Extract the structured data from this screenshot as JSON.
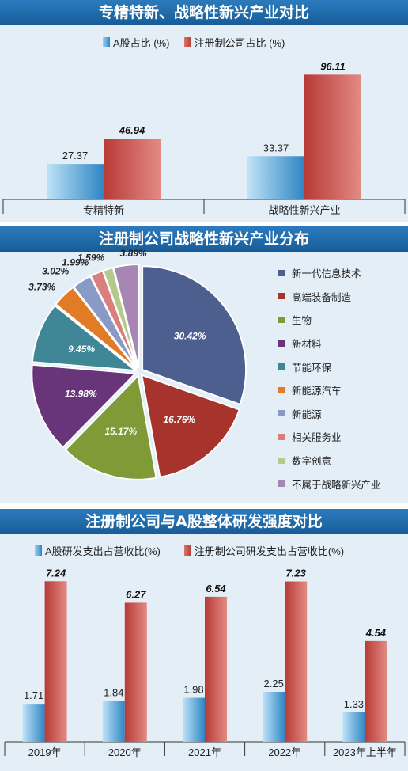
{
  "panel1": {
    "title": "专精特新、战略性新兴产业对比"
  },
  "panel2": {
    "title": "注册制公司战略性新兴产业分布"
  },
  "panel3": {
    "title": "注册制公司与A股整体研发强度对比"
  },
  "colors": {
    "blue": "#2f86c4",
    "red": "#b83a36",
    "title_bar": "#1e6aa8",
    "panel_bg": "#e3eef7",
    "pie": [
      "#4d5f8f",
      "#a6332c",
      "#7f9a36",
      "#68357a",
      "#3f8696",
      "#e27b25",
      "#8a9ac6",
      "#d97f7d",
      "#b4c98a",
      "#a886b4"
    ]
  },
  "chart_data": [
    {
      "type": "bar",
      "title": "专精特新、战略性新兴产业对比",
      "categories": [
        "专精特新",
        "战略性新兴产业"
      ],
      "series": [
        {
          "name": "A股占比 (%)",
          "values": [
            27.37,
            33.37
          ]
        },
        {
          "name": "注册制公司占比 (%)",
          "values": [
            46.94,
            96.11
          ]
        }
      ],
      "ylim": [
        0,
        100
      ],
      "legend": "top-center",
      "grid": false
    },
    {
      "type": "pie",
      "title": "注册制公司战略性新兴产业分布",
      "labels": [
        "新一代信息技术",
        "高端装备制造",
        "生物",
        "新材料",
        "节能环保",
        "新能源汽车",
        "新能源",
        "相关服务业",
        "数字创意",
        "不属于战略新兴产业"
      ],
      "values": [
        30.42,
        16.76,
        15.17,
        13.98,
        9.45,
        3.73,
        3.02,
        1.99,
        1.59,
        3.89
      ],
      "value_labels": [
        "30.42%",
        "16.76%",
        "15.17%",
        "13.98%",
        "9.45%",
        "3.73%",
        "3.02%",
        "1.99%",
        "1.59%",
        "3.89%"
      ],
      "legend": "right"
    },
    {
      "type": "bar",
      "title": "注册制公司与A股整体研发强度对比",
      "categories": [
        "2019年",
        "2020年",
        "2021年",
        "2022年",
        "2023年上半年"
      ],
      "series": [
        {
          "name": "A股研发支出占营收比(%)",
          "values": [
            1.71,
            1.84,
            1.98,
            2.25,
            1.33
          ]
        },
        {
          "name": "注册制公司研发支出占营收比(%)",
          "values": [
            7.24,
            6.27,
            6.54,
            7.23,
            4.54
          ]
        }
      ],
      "ylim": [
        0,
        8
      ],
      "legend": "top-center",
      "grid": false
    }
  ]
}
